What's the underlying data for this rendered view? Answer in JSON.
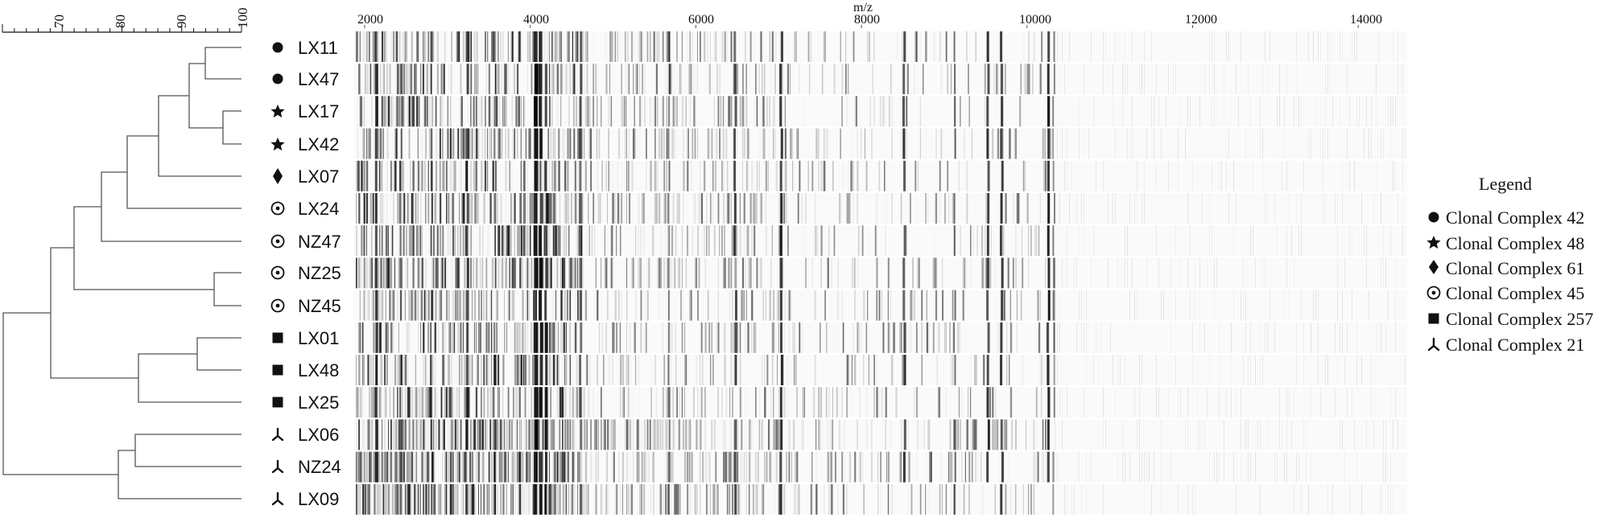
{
  "dendrogram": {
    "scale_ticks": [
      "70",
      "80",
      "90",
      "100"
    ],
    "scale_min": 60,
    "scale_max": 100
  },
  "spectra": {
    "axis_label": "m/z",
    "mz_ticks": [
      "2000",
      "4000",
      "6000",
      "8000",
      "10000",
      "12000",
      "14000"
    ],
    "mz_min": 2000,
    "mz_max": 14000
  },
  "samples": [
    {
      "label": "LX11",
      "symbol": "circle"
    },
    {
      "label": "LX47",
      "symbol": "circle"
    },
    {
      "label": "LX17",
      "symbol": "star"
    },
    {
      "label": "LX42",
      "symbol": "star"
    },
    {
      "label": "LX07",
      "symbol": "diamond"
    },
    {
      "label": "LX24",
      "symbol": "dotted-circle"
    },
    {
      "label": "NZ47",
      "symbol": "dotted-circle"
    },
    {
      "label": "NZ25",
      "symbol": "dotted-circle"
    },
    {
      "label": "NZ45",
      "symbol": "dotted-circle"
    },
    {
      "label": "LX01",
      "symbol": "square"
    },
    {
      "label": "LX48",
      "symbol": "square"
    },
    {
      "label": "LX25",
      "symbol": "square"
    },
    {
      "label": "LX06",
      "symbol": "tripod"
    },
    {
      "label": "NZ24",
      "symbol": "tripod"
    },
    {
      "label": "LX09",
      "symbol": "tripod"
    }
  ],
  "legend": {
    "title": "Legend",
    "items": [
      {
        "label": "Clonal Complex 42",
        "symbol": "circle"
      },
      {
        "label": "Clonal Complex 48",
        "symbol": "star"
      },
      {
        "label": "Clonal Complex 61",
        "symbol": "diamond"
      },
      {
        "label": "Clonal Complex 45",
        "symbol": "dotted-circle"
      },
      {
        "label": "Clonal Complex 257",
        "symbol": "square"
      },
      {
        "label": "Clonal Complex 21",
        "symbol": "tripod"
      }
    ]
  },
  "colors": {
    "ink": "#111111",
    "band": "#000000",
    "band_background": "#fafafa"
  }
}
